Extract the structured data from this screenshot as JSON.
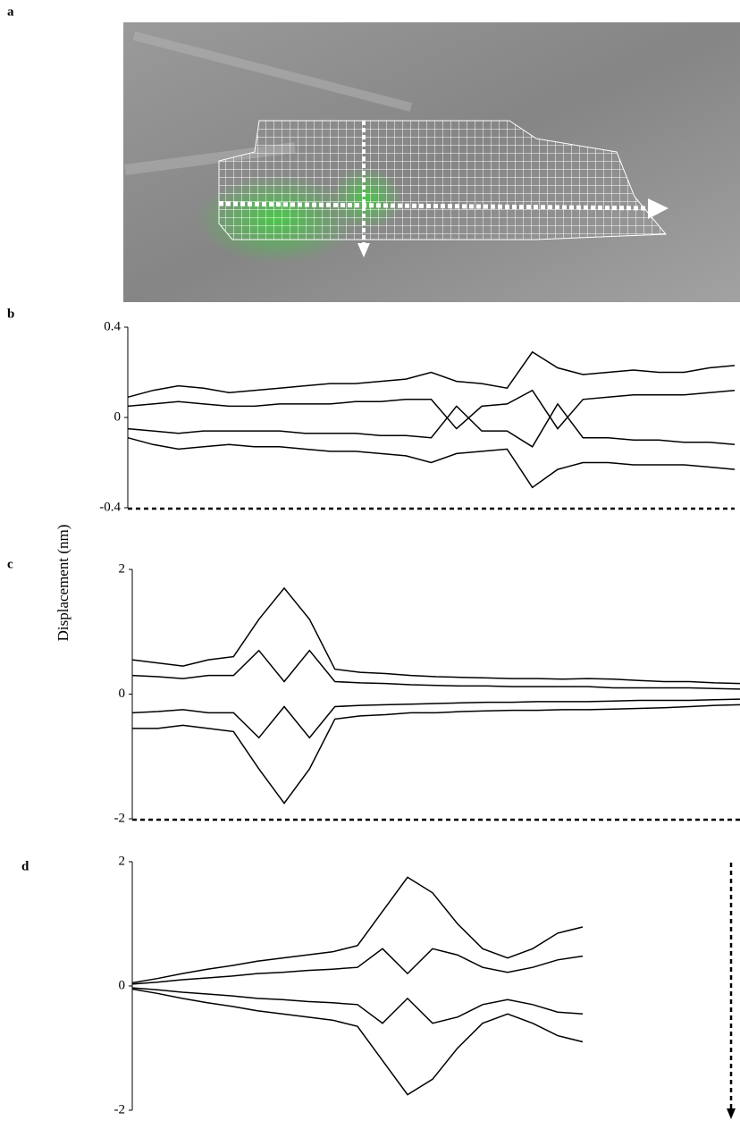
{
  "figure": {
    "ylabel": "Displacement (nm)",
    "panel_labels": [
      "a",
      "b",
      "c",
      "d"
    ]
  },
  "chart_data": [
    {
      "type": "line",
      "ylim": [
        -0.4,
        0.4
      ],
      "yticks": [
        0.4,
        0,
        -0.4
      ],
      "categories": [
        null,
        null,
        null,
        null,
        null,
        null,
        null,
        null,
        null,
        null,
        null,
        null,
        null,
        null,
        null,
        null,
        null,
        null,
        null,
        null,
        null,
        null,
        null,
        null,
        null
      ],
      "series": [
        {
          "color": "#000000",
          "values": [
            0.09,
            0.12,
            0.14,
            0.13,
            0.11,
            0.12,
            0.13,
            0.14,
            0.15,
            0.15,
            0.16,
            0.17,
            0.2,
            0.16,
            0.15,
            0.13,
            0.29,
            0.22,
            0.19,
            0.2,
            0.21,
            0.2,
            0.2,
            0.22,
            0.23
          ]
        },
        {
          "color": "#000000",
          "values": [
            0.05,
            0.06,
            0.07,
            0.06,
            0.05,
            0.05,
            0.06,
            0.06,
            0.06,
            0.07,
            0.07,
            0.08,
            0.08,
            -0.05,
            0.05,
            0.06,
            0.12,
            -0.05,
            0.08,
            0.09,
            0.1,
            0.1,
            0.1,
            0.11,
            0.12
          ]
        },
        {
          "color": "#000000",
          "values": [
            -0.05,
            -0.06,
            -0.07,
            -0.06,
            -0.06,
            -0.06,
            -0.06,
            -0.07,
            -0.07,
            -0.07,
            -0.08,
            -0.08,
            -0.09,
            0.05,
            -0.06,
            -0.06,
            -0.13,
            0.06,
            -0.09,
            -0.09,
            -0.1,
            -0.1,
            -0.11,
            -0.11,
            -0.12
          ]
        },
        {
          "color": "#000000",
          "values": [
            -0.09,
            -0.12,
            -0.14,
            -0.13,
            -0.12,
            -0.13,
            -0.13,
            -0.14,
            -0.15,
            -0.15,
            -0.16,
            -0.17,
            -0.2,
            -0.16,
            -0.15,
            -0.14,
            -0.31,
            -0.23,
            -0.2,
            -0.2,
            -0.21,
            -0.21,
            -0.21,
            -0.22,
            -0.23
          ]
        }
      ]
    },
    {
      "type": "line",
      "ylim": [
        -2,
        2
      ],
      "yticks": [
        2,
        0,
        -2
      ],
      "categories": [
        null,
        null,
        null,
        null,
        null,
        null,
        null,
        null,
        null,
        null,
        null,
        null,
        null,
        null,
        null,
        null,
        null,
        null,
        null,
        null,
        null,
        null,
        null,
        null,
        null
      ],
      "series": [
        {
          "color": "#000000",
          "values": [
            0.55,
            0.5,
            0.45,
            0.55,
            0.6,
            1.2,
            1.7,
            1.2,
            0.4,
            0.35,
            0.33,
            0.3,
            0.28,
            0.27,
            0.26,
            0.25,
            0.25,
            0.24,
            0.25,
            0.24,
            0.22,
            0.2,
            0.2,
            0.18,
            0.17
          ]
        },
        {
          "color": "#000000",
          "values": [
            0.3,
            0.28,
            0.25,
            0.3,
            0.3,
            0.7,
            0.2,
            0.7,
            0.2,
            0.18,
            0.17,
            0.15,
            0.14,
            0.13,
            0.13,
            0.12,
            0.12,
            0.12,
            0.12,
            0.1,
            0.1,
            0.1,
            0.1,
            0.09,
            0.08
          ]
        },
        {
          "color": "#000000",
          "values": [
            -0.3,
            -0.28,
            -0.25,
            -0.3,
            -0.3,
            -0.7,
            -0.2,
            -0.7,
            -0.2,
            -0.18,
            -0.17,
            -0.16,
            -0.15,
            -0.14,
            -0.13,
            -0.13,
            -0.12,
            -0.12,
            -0.12,
            -0.11,
            -0.1,
            -0.1,
            -0.1,
            -0.09,
            -0.08
          ]
        },
        {
          "color": "#000000",
          "values": [
            -0.55,
            -0.55,
            -0.5,
            -0.55,
            -0.6,
            -1.2,
            -1.75,
            -1.2,
            -0.4,
            -0.35,
            -0.33,
            -0.3,
            -0.3,
            -0.28,
            -0.27,
            -0.26,
            -0.26,
            -0.25,
            -0.25,
            -0.24,
            -0.23,
            -0.22,
            -0.2,
            -0.18,
            -0.17
          ]
        }
      ]
    },
    {
      "type": "line",
      "ylim": [
        -2,
        2
      ],
      "yticks": [
        2,
        0,
        -2
      ],
      "categories": [
        null,
        null,
        null,
        null,
        null,
        null,
        null,
        null,
        null,
        null,
        null,
        null,
        null,
        null,
        null,
        null,
        null,
        null,
        null,
        null,
        null,
        null,
        null,
        null,
        null
      ],
      "series": [
        {
          "color": "#000000",
          "values": [
            0.05,
            0.12,
            0.2,
            0.27,
            0.33,
            0.4,
            0.45,
            0.5,
            0.55,
            0.65,
            1.2,
            1.75,
            1.5,
            1.0,
            0.6,
            0.45,
            0.6,
            0.85,
            0.95,
            null,
            null,
            null,
            null,
            null,
            null
          ]
        },
        {
          "color": "#000000",
          "values": [
            0.03,
            0.06,
            0.1,
            0.13,
            0.16,
            0.2,
            0.22,
            0.25,
            0.27,
            0.3,
            0.6,
            0.2,
            0.6,
            0.5,
            0.3,
            0.22,
            0.3,
            0.42,
            0.48,
            null,
            null,
            null,
            null,
            null,
            null
          ]
        },
        {
          "color": "#000000",
          "values": [
            -0.03,
            -0.06,
            -0.1,
            -0.13,
            -0.16,
            -0.2,
            -0.22,
            -0.25,
            -0.27,
            -0.3,
            -0.6,
            -0.2,
            -0.6,
            -0.5,
            -0.3,
            -0.22,
            -0.3,
            -0.42,
            -0.45,
            null,
            null,
            null,
            null,
            null,
            null
          ]
        },
        {
          "color": "#000000",
          "values": [
            -0.05,
            -0.12,
            -0.2,
            -0.27,
            -0.33,
            -0.4,
            -0.45,
            -0.5,
            -0.55,
            -0.65,
            -1.2,
            -1.75,
            -1.5,
            -1.0,
            -0.6,
            -0.45,
            -0.6,
            -0.8,
            -0.9,
            null,
            null,
            null,
            null,
            null,
            null
          ]
        }
      ]
    }
  ]
}
